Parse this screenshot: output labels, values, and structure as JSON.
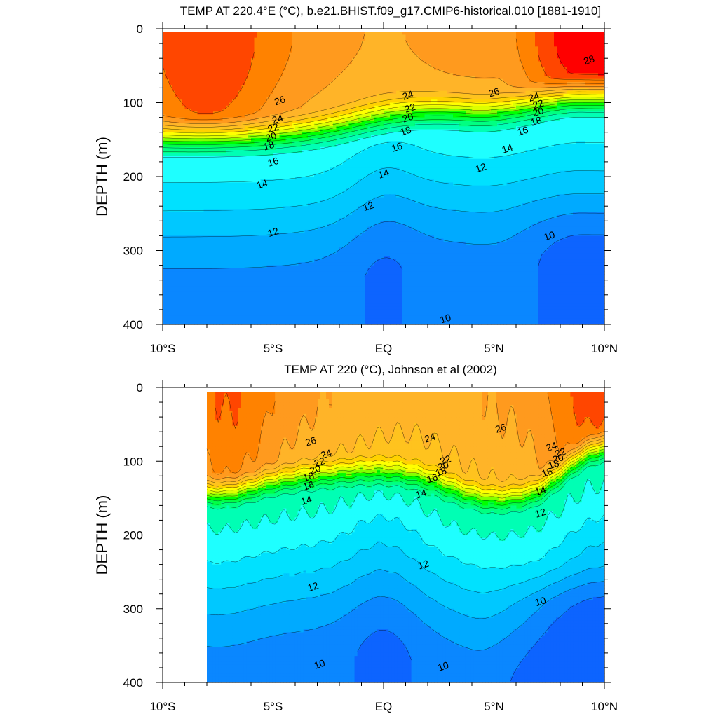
{
  "chart_data": [
    {
      "type": "contour",
      "title": "TEMP AT 220.4°E (°C), b.e21.BHIST.f09_g17.CMIP6-historical.010 [1881-1910]",
      "xlabel": "",
      "ylabel": "DEPTH (m)",
      "xlim": [
        -10,
        10
      ],
      "ylim": [
        400,
        0
      ],
      "x_ticks": [
        -10,
        -5,
        0,
        5,
        10
      ],
      "x_tick_labels": [
        "10°S",
        "5°S",
        "EQ",
        "5°N",
        "10°N"
      ],
      "y_ticks": [
        0,
        100,
        200,
        300,
        400
      ],
      "y_tick_labels": [
        "0",
        "100",
        "200",
        "300",
        "400"
      ],
      "data_xrange": [
        -10,
        10
      ],
      "contour_interval": 1,
      "contour_labels": [
        {
          "text": "28",
          "lat": 9.3,
          "depth": 42
        },
        {
          "text": "26",
          "lat": -4.7,
          "depth": 97
        },
        {
          "text": "26",
          "lat": 5.0,
          "depth": 86
        },
        {
          "text": "24",
          "lat": -4.8,
          "depth": 122
        },
        {
          "text": "22",
          "lat": -5.0,
          "depth": 134
        },
        {
          "text": "20",
          "lat": -5.1,
          "depth": 146
        },
        {
          "text": "18",
          "lat": -5.2,
          "depth": 158
        },
        {
          "text": "16",
          "lat": -5.0,
          "depth": 180
        },
        {
          "text": "14",
          "lat": -5.5,
          "depth": 210
        },
        {
          "text": "12",
          "lat": -5.0,
          "depth": 275
        },
        {
          "text": "24",
          "lat": 1.1,
          "depth": 90
        },
        {
          "text": "22",
          "lat": 1.2,
          "depth": 107
        },
        {
          "text": "20",
          "lat": 1.1,
          "depth": 120
        },
        {
          "text": "18",
          "lat": 1.0,
          "depth": 138
        },
        {
          "text": "16",
          "lat": 0.6,
          "depth": 160
        },
        {
          "text": "14",
          "lat": 0.0,
          "depth": 196
        },
        {
          "text": "12",
          "lat": -0.7,
          "depth": 240
        },
        {
          "text": "24",
          "lat": 6.8,
          "depth": 92
        },
        {
          "text": "22",
          "lat": 7.0,
          "depth": 102
        },
        {
          "text": "20",
          "lat": 7.0,
          "depth": 112
        },
        {
          "text": "18",
          "lat": 6.9,
          "depth": 125
        },
        {
          "text": "16",
          "lat": 6.3,
          "depth": 138
        },
        {
          "text": "14",
          "lat": 5.6,
          "depth": 162
        },
        {
          "text": "12",
          "lat": 4.4,
          "depth": 188
        },
        {
          "text": "10",
          "lat": 7.5,
          "depth": 280
        },
        {
          "text": "10",
          "lat": 2.8,
          "depth": 392
        }
      ]
    },
    {
      "type": "contour",
      "title": "TEMP AT 220 (°C), Johnson et al (2002)",
      "xlabel": "",
      "ylabel": "DEPTH (m)",
      "xlim": [
        -10,
        10
      ],
      "ylim": [
        400,
        0
      ],
      "x_ticks": [
        -10,
        -5,
        0,
        5,
        10
      ],
      "x_tick_labels": [
        "10°S",
        "5°S",
        "EQ",
        "5°N",
        "10°N"
      ],
      "y_ticks": [
        0,
        100,
        200,
        300,
        400
      ],
      "y_tick_labels": [
        "0",
        "100",
        "200",
        "300",
        "400"
      ],
      "data_xrange": [
        -8,
        10
      ],
      "contour_interval": 1,
      "contour_labels": [
        {
          "text": "26",
          "lat": -3.3,
          "depth": 73
        },
        {
          "text": "24",
          "lat": -2.6,
          "depth": 90
        },
        {
          "text": "22",
          "lat": -2.9,
          "depth": 101
        },
        {
          "text": "20",
          "lat": -3.1,
          "depth": 111
        },
        {
          "text": "18",
          "lat": -3.4,
          "depth": 121
        },
        {
          "text": "16",
          "lat": -3.4,
          "depth": 133
        },
        {
          "text": "14",
          "lat": -3.5,
          "depth": 153
        },
        {
          "text": "12",
          "lat": -3.2,
          "depth": 270
        },
        {
          "text": "10",
          "lat": -2.9,
          "depth": 375
        },
        {
          "text": "24",
          "lat": 2.1,
          "depth": 68
        },
        {
          "text": "22",
          "lat": 2.8,
          "depth": 98
        },
        {
          "text": "20",
          "lat": 2.7,
          "depth": 106
        },
        {
          "text": "18",
          "lat": 2.6,
          "depth": 114
        },
        {
          "text": "16",
          "lat": 2.2,
          "depth": 123
        },
        {
          "text": "14",
          "lat": 1.7,
          "depth": 144
        },
        {
          "text": "12",
          "lat": 1.8,
          "depth": 240
        },
        {
          "text": "10",
          "lat": 2.7,
          "depth": 378
        },
        {
          "text": "26",
          "lat": 5.3,
          "depth": 55
        },
        {
          "text": "24",
          "lat": 7.6,
          "depth": 80
        },
        {
          "text": "22",
          "lat": 8.0,
          "depth": 88
        },
        {
          "text": "20",
          "lat": 7.9,
          "depth": 96
        },
        {
          "text": "18",
          "lat": 7.7,
          "depth": 104
        },
        {
          "text": "16",
          "lat": 7.4,
          "depth": 115
        },
        {
          "text": "14",
          "lat": 7.1,
          "depth": 140
        },
        {
          "text": "12",
          "lat": 7.1,
          "depth": 170
        },
        {
          "text": "10",
          "lat": 7.1,
          "depth": 290
        }
      ]
    }
  ],
  "colors": {
    "levels": [
      9,
      10,
      11,
      12,
      13,
      14,
      15,
      16,
      17,
      18,
      19,
      20,
      21,
      22,
      23,
      24,
      25,
      26,
      27,
      28
    ],
    "fills": [
      "#0046ff",
      "#0d64ff",
      "#0a87ff",
      "#00aaff",
      "#00c8ff",
      "#00e1ff",
      "#1effff",
      "#00ffb4",
      "#00ff82",
      "#00ff46",
      "#00ff00",
      "#82ff00",
      "#dcff00",
      "#ffff00",
      "#ffd200",
      "#ffc31e",
      "#ffb428",
      "#ff9a1e",
      "#ff8200",
      "#ff4600",
      "#ff0000"
    ]
  }
}
